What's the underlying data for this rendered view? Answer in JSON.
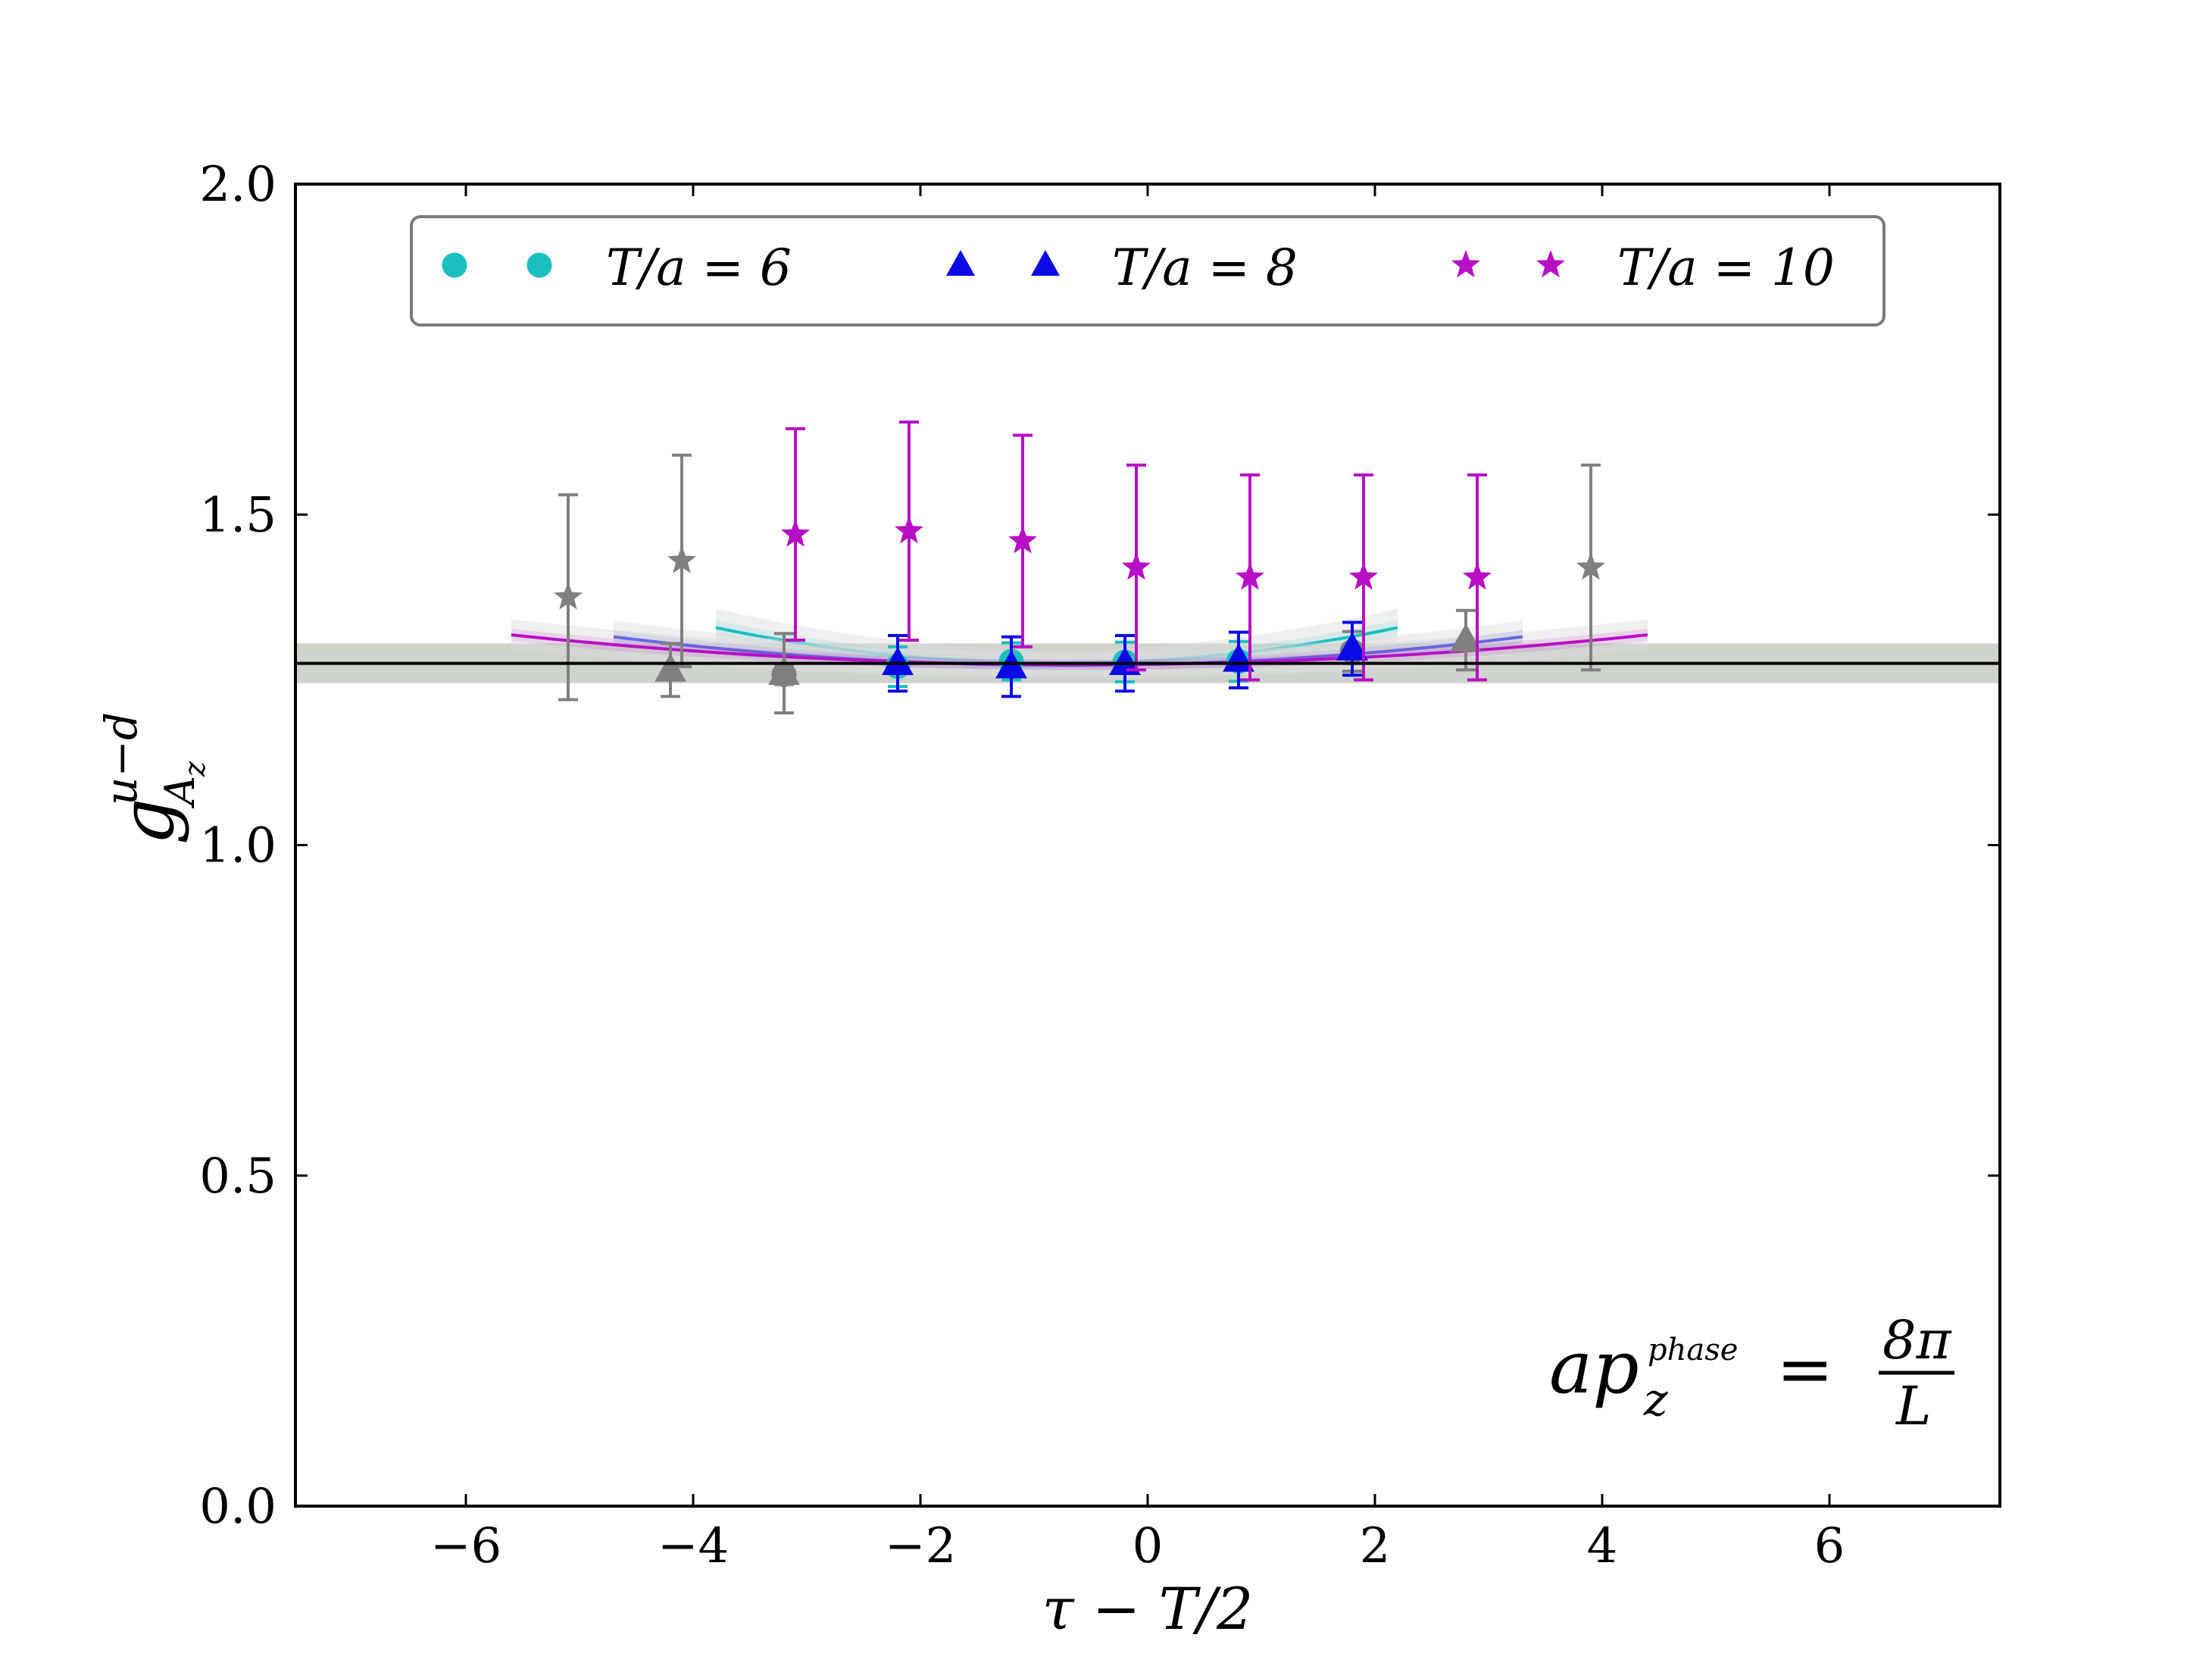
{
  "chart_data": {
    "type": "scatter",
    "title": "",
    "xlabel": "τ − T/2",
    "ylabel": {
      "base": "g",
      "sup": "u−d",
      "sub": "A",
      "subsub": "z"
    },
    "xlim": [
      -7.5,
      7.5
    ],
    "ylim": [
      0.0,
      2.0
    ],
    "xticks": [
      -6,
      -4,
      -2,
      0,
      2,
      4,
      6
    ],
    "xtick_labels": [
      "−6",
      "−4",
      "−2",
      "0",
      "2",
      "4",
      "6"
    ],
    "yticks": [
      0.0,
      0.5,
      1.0,
      1.5,
      2.0
    ],
    "ytick_labels": [
      "0.0",
      "0.5",
      "1.0",
      "1.5",
      "2.0"
    ],
    "legend": {
      "placement": "top",
      "entries": [
        "T/a = 6",
        "T/a = 8",
        "T/a = 10"
      ]
    },
    "annotation": {
      "lhs": "ap",
      "sub": "z",
      "sup": "phase",
      "eq": "=",
      "num": "8π",
      "den": "L"
    },
    "band": {
      "center": 1.275,
      "half_width": 0.03,
      "color": "#c6cbc3"
    },
    "series": [
      {
        "name": "T/a = 6",
        "marker": "circle",
        "color": "#1bbfbf",
        "x": [
          -3.2,
          -2.2,
          -1.2,
          -0.2,
          0.8,
          1.8
        ],
        "y": [
          1.258,
          1.27,
          1.278,
          1.277,
          1.278,
          1.293
        ],
        "err": [
          0.015,
          0.03,
          0.028,
          0.03,
          0.03,
          0.03
        ],
        "excluded": [
          0,
          5
        ],
        "fit": {
          "x_range": [
            -3.8,
            2.2
          ],
          "curvature": 0.006,
          "min": 1.275
        }
      },
      {
        "name": "T/a = 8",
        "marker": "triangle",
        "color": "#0a0ae6",
        "x": [
          -4.2,
          -3.2,
          -2.2,
          -1.2,
          -0.2,
          0.8,
          1.8,
          2.8
        ],
        "y": [
          1.265,
          1.26,
          1.275,
          1.27,
          1.275,
          1.28,
          1.297,
          1.31
        ],
        "err": [
          0.04,
          0.06,
          0.042,
          0.045,
          0.042,
          0.042,
          0.04,
          0.045
        ],
        "excluded": [
          0,
          1,
          7
        ],
        "fit": {
          "x_range": [
            -4.7,
            3.3
          ],
          "curvature": 0.0027,
          "min": 1.272
        }
      },
      {
        "name": "T/a = 10",
        "marker": "star",
        "color": "#b80fc4",
        "x": [
          -5.1,
          -4.1,
          -3.1,
          -2.1,
          -1.1,
          -0.1,
          0.9,
          1.9,
          2.9,
          3.9
        ],
        "y": [
          1.375,
          1.43,
          1.47,
          1.475,
          1.46,
          1.42,
          1.405,
          1.405,
          1.405,
          1.42
        ],
        "err": [
          0.155,
          0.16,
          0.16,
          0.165,
          0.16,
          0.155,
          0.155,
          0.155,
          0.155,
          0.155
        ],
        "excluded": [
          0,
          1,
          9
        ],
        "fit": {
          "x_range": [
            -5.6,
            4.4
          ],
          "curvature": 0.0018,
          "min": 1.273
        }
      }
    ],
    "excluded_color": "#808080"
  }
}
